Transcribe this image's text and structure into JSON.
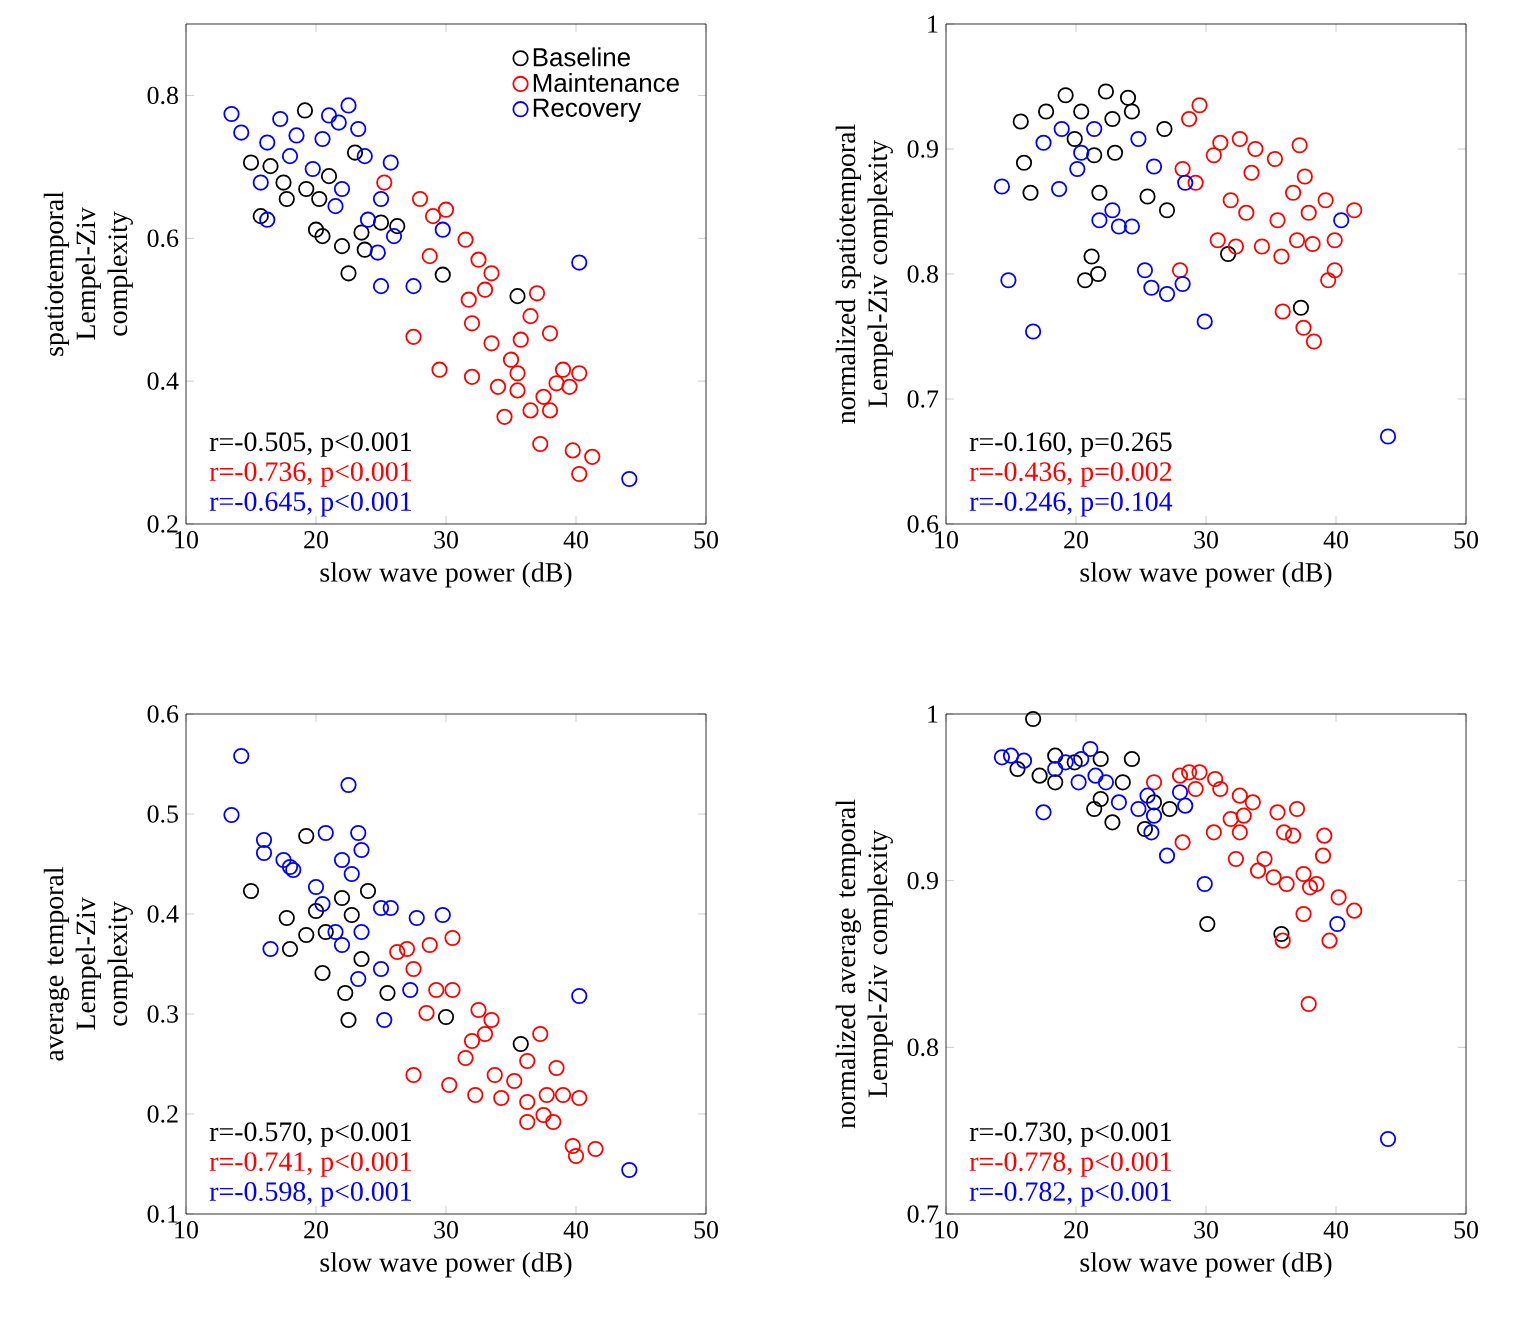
{
  "chart_data": [
    {
      "type": "scatter",
      "xlabel": "slow wave power (dB)",
      "ylabel": "spatiotemporal Lempel-Ziv complexity",
      "xlim": [
        10,
        50
      ],
      "xticks": [
        10,
        20,
        30,
        40,
        50
      ],
      "ylim": [
        0.2,
        0.9
      ],
      "yticks": [
        0.2,
        0.4,
        0.6,
        0.8
      ],
      "marker": "circle",
      "legend": "top right",
      "series": [
        {
          "name": "Baseline",
          "color": "#000000",
          "x": [
            19.15,
            15.0,
            16.5,
            17.75,
            15.75,
            19.25,
            20.25,
            20.0,
            20.5,
            22.0,
            22.5,
            23.5,
            25.0,
            26.25,
            29.75,
            35.5,
            23.0,
            21.0,
            23.75,
            17.5
          ],
          "values": [
            0.779,
            0.706,
            0.701,
            0.655,
            0.631,
            0.669,
            0.655,
            0.612,
            0.603,
            0.589,
            0.551,
            0.608,
            0.622,
            0.617,
            0.549,
            0.519,
            0.72,
            0.687,
            0.584,
            0.678
          ]
        },
        {
          "name": "Maintenance",
          "color": "#ff0000",
          "x": [
            25.25,
            28.0,
            29.0,
            30.0,
            28.75,
            27.5,
            29.5,
            31.5,
            32.5,
            33.5,
            33.0,
            31.75,
            32.0,
            33.5,
            32.0,
            34.0,
            35.0,
            35.75,
            36.5,
            37.0,
            38.0,
            35.5,
            36.5,
            37.5,
            39.0,
            39.5,
            40.25,
            38.5,
            37.25,
            38.0,
            39.75,
            41.25,
            40.25,
            35.5,
            34.5
          ],
          "values": [
            0.678,
            0.655,
            0.631,
            0.64,
            0.575,
            0.462,
            0.416,
            0.598,
            0.57,
            0.551,
            0.528,
            0.514,
            0.481,
            0.453,
            0.406,
            0.392,
            0.43,
            0.458,
            0.491,
            0.523,
            0.467,
            0.387,
            0.359,
            0.378,
            0.416,
            0.392,
            0.411,
            0.397,
            0.312,
            0.359,
            0.303,
            0.294,
            0.27,
            0.411,
            0.35
          ]
        },
        {
          "name": "Recovery",
          "color": "#0000ff",
          "x": [
            13.5,
            14.25,
            17.25,
            15.75,
            16.25,
            18.5,
            20.5,
            22.5,
            23.25,
            23.75,
            25.75,
            22.0,
            21.5,
            19.75,
            25.0,
            26.0,
            24.75,
            25.0,
            27.5,
            29.75,
            40.25,
            44.1,
            18.0,
            24.0,
            16.25,
            21.75,
            21.0
          ],
          "values": [
            0.774,
            0.748,
            0.767,
            0.678,
            0.626,
            0.744,
            0.739,
            0.786,
            0.753,
            0.715,
            0.706,
            0.669,
            0.645,
            0.697,
            0.655,
            0.603,
            0.58,
            0.533,
            0.533,
            0.612,
            0.566,
            0.263,
            0.715,
            0.626,
            0.734,
            0.762,
            0.772
          ]
        }
      ],
      "annotations": [
        "r=-0.505, p<0.001",
        "r=-0.736, p<0.001",
        "r=-0.645, p<0.001"
      ]
    },
    {
      "type": "scatter",
      "xlabel": "slow wave power (dB)",
      "ylabel": "normalized spatiotemporal Lempel-Ziv complexity",
      "xlim": [
        10,
        50
      ],
      "xticks": [
        10,
        20,
        30,
        40,
        50
      ],
      "ylim": [
        0.6,
        1
      ],
      "yticks": [
        0.6,
        0.7,
        0.8,
        0.9,
        1
      ],
      "marker": "circle",
      "series": [
        {
          "color": "#000000",
          "x": [
            15.75,
            17.7,
            19.2,
            20.4,
            22.3,
            24.0,
            24.3,
            16.0,
            16.5,
            19.9,
            21.8,
            23.0,
            25.5,
            27.0,
            26.8,
            21.2,
            20.7,
            21.7,
            31.7,
            37.3,
            22.8,
            21.4
          ],
          "values": [
            0.922,
            0.93,
            0.943,
            0.93,
            0.946,
            0.941,
            0.93,
            0.889,
            0.865,
            0.908,
            0.865,
            0.897,
            0.862,
            0.851,
            0.916,
            0.814,
            0.795,
            0.8,
            0.816,
            0.773,
            0.924,
            0.895
          ]
        },
        {
          "color": "#ff0000",
          "x": [
            28.7,
            29.5,
            28.2,
            29.2,
            31.1,
            32.6,
            33.8,
            30.6,
            33.5,
            31.9,
            33.1,
            32.3,
            34.3,
            35.5,
            35.3,
            37.2,
            37.6,
            36.7,
            37.9,
            39.2,
            41.4,
            35.8,
            37.0,
            38.2,
            39.9,
            39.9,
            39.4,
            37.5,
            38.3,
            35.9,
            28.0,
            30.9
          ],
          "values": [
            0.924,
            0.935,
            0.884,
            0.873,
            0.905,
            0.908,
            0.9,
            0.895,
            0.881,
            0.859,
            0.849,
            0.822,
            0.822,
            0.843,
            0.892,
            0.903,
            0.878,
            0.865,
            0.849,
            0.859,
            0.851,
            0.814,
            0.827,
            0.824,
            0.827,
            0.803,
            0.795,
            0.757,
            0.746,
            0.77,
            0.803,
            0.827
          ]
        },
        {
          "color": "#0000ff",
          "x": [
            14.3,
            14.8,
            16.7,
            17.5,
            18.9,
            20.4,
            18.7,
            20.1,
            21.8,
            22.8,
            24.3,
            23.3,
            21.4,
            24.8,
            26.0,
            25.3,
            25.8,
            27.0,
            28.2,
            28.4,
            29.9,
            40.4,
            44.0
          ],
          "values": [
            0.87,
            0.795,
            0.754,
            0.905,
            0.916,
            0.897,
            0.868,
            0.884,
            0.843,
            0.851,
            0.838,
            0.838,
            0.916,
            0.908,
            0.886,
            0.803,
            0.789,
            0.784,
            0.792,
            0.873,
            0.762,
            0.843,
            0.67
          ]
        }
      ],
      "annotations": [
        "r=-0.160, p=0.265",
        "r=-0.436, p=0.002",
        "r=-0.246, p=0.104"
      ]
    },
    {
      "type": "scatter",
      "xlabel": "slow wave power (dB)",
      "ylabel": "average temporal Lempel-Ziv complexity",
      "xlim": [
        10,
        50
      ],
      "xticks": [
        10,
        20,
        30,
        40,
        50
      ],
      "ylim": [
        0.1,
        0.6
      ],
      "yticks": [
        0.1,
        0.2,
        0.3,
        0.4,
        0.5,
        0.6
      ],
      "marker": "circle",
      "series": [
        {
          "color": "#000000",
          "x": [
            15.0,
            19.25,
            17.75,
            18.0,
            19.25,
            20.75,
            20.5,
            22.25,
            22.5,
            23.5,
            24.0,
            22.0,
            25.5,
            30.0,
            35.75,
            20.0,
            22.75
          ],
          "values": [
            0.423,
            0.478,
            0.396,
            0.365,
            0.379,
            0.382,
            0.341,
            0.321,
            0.294,
            0.355,
            0.423,
            0.416,
            0.321,
            0.297,
            0.27,
            0.403,
            0.399
          ]
        },
        {
          "color": "#ff0000",
          "x": [
            26.25,
            27.0,
            28.75,
            30.5,
            27.5,
            29.25,
            30.5,
            28.5,
            32.5,
            33.5,
            32.0,
            33.0,
            31.5,
            27.5,
            30.25,
            32.25,
            33.75,
            35.25,
            36.25,
            37.25,
            38.5,
            39.0,
            40.25,
            36.25,
            37.5,
            38.25,
            36.25,
            39.75,
            40.0,
            41.5,
            34.25,
            37.75
          ],
          "values": [
            0.362,
            0.365,
            0.369,
            0.376,
            0.345,
            0.324,
            0.324,
            0.301,
            0.304,
            0.294,
            0.273,
            0.28,
            0.256,
            0.239,
            0.229,
            0.219,
            0.239,
            0.233,
            0.253,
            0.28,
            0.246,
            0.219,
            0.216,
            0.212,
            0.199,
            0.192,
            0.192,
            0.168,
            0.158,
            0.165,
            0.216,
            0.219
          ]
        },
        {
          "color": "#0000ff",
          "x": [
            14.25,
            13.5,
            22.5,
            16.0,
            16.0,
            17.5,
            18.25,
            20.75,
            23.25,
            23.5,
            22.0,
            22.75,
            20.0,
            20.5,
            16.5,
            21.5,
            23.5,
            25.0,
            25.75,
            27.75,
            29.75,
            23.25,
            25.0,
            25.25,
            27.25,
            40.25,
            44.1,
            18.0,
            22.0
          ],
          "values": [
            0.558,
            0.499,
            0.529,
            0.474,
            0.461,
            0.454,
            0.444,
            0.481,
            0.481,
            0.464,
            0.454,
            0.44,
            0.427,
            0.41,
            0.365,
            0.382,
            0.382,
            0.406,
            0.406,
            0.396,
            0.399,
            0.335,
            0.345,
            0.294,
            0.324,
            0.318,
            0.144,
            0.447,
            0.369
          ]
        }
      ],
      "annotations": [
        "r=-0.570, p<0.001",
        "r=-0.741, p<0.001",
        "r=-0.598, p<0.001"
      ]
    },
    {
      "type": "scatter",
      "xlabel": "slow wave power (dB)",
      "ylabel": "normalized average temporal Lempel-Ziv complexity",
      "xlim": [
        10,
        50
      ],
      "xticks": [
        10,
        20,
        30,
        40,
        50
      ],
      "ylim": [
        0.7,
        1
      ],
      "yticks": [
        0.7,
        0.8,
        0.9,
        1
      ],
      "marker": "circle",
      "series": [
        {
          "color": "#000000",
          "x": [
            16.7,
            15.5,
            17.2,
            18.4,
            19.9,
            21.9,
            24.3,
            21.9,
            22.8,
            21.4,
            25.3,
            26.0,
            27.2,
            30.1,
            35.8,
            18.4,
            23.6
          ],
          "values": [
            0.997,
            0.967,
            0.963,
            0.959,
            0.971,
            0.973,
            0.973,
            0.949,
            0.935,
            0.943,
            0.931,
            0.947,
            0.943,
            0.874,
            0.868,
            0.975,
            0.959
          ]
        },
        {
          "color": "#ff0000",
          "x": [
            26.0,
            28.0,
            28.7,
            29.5,
            30.7,
            28.2,
            29.2,
            31.1,
            32.6,
            33.6,
            32.9,
            31.9,
            30.6,
            32.6,
            32.3,
            34.0,
            35.5,
            37.0,
            36.0,
            36.7,
            39.1,
            35.2,
            36.2,
            37.5,
            38.0,
            38.5,
            39.0,
            40.2,
            41.4,
            37.5,
            39.5,
            35.9,
            37.9,
            34.5
          ],
          "values": [
            0.959,
            0.963,
            0.965,
            0.965,
            0.961,
            0.923,
            0.955,
            0.955,
            0.951,
            0.947,
            0.939,
            0.937,
            0.929,
            0.929,
            0.913,
            0.906,
            0.941,
            0.943,
            0.929,
            0.927,
            0.927,
            0.902,
            0.898,
            0.904,
            0.896,
            0.898,
            0.915,
            0.89,
            0.882,
            0.88,
            0.864,
            0.864,
            0.826,
            0.913
          ]
        },
        {
          "color": "#0000ff",
          "x": [
            14.3,
            15.0,
            16.0,
            17.5,
            19.2,
            20.4,
            21.1,
            18.4,
            20.2,
            22.3,
            23.3,
            24.8,
            25.8,
            27.0,
            26.0,
            28.0,
            28.4,
            29.9,
            40.1,
            44.0,
            21.5,
            25.5
          ],
          "values": [
            0.974,
            0.975,
            0.972,
            0.941,
            0.971,
            0.973,
            0.979,
            0.967,
            0.959,
            0.959,
            0.947,
            0.943,
            0.929,
            0.915,
            0.939,
            0.953,
            0.945,
            0.898,
            0.874,
            0.745,
            0.963,
            0.951
          ]
        }
      ],
      "annotations": [
        "r=-0.730, p<0.001",
        "r=-0.778, p<0.001",
        "r=-0.782, p<0.001"
      ]
    }
  ]
}
